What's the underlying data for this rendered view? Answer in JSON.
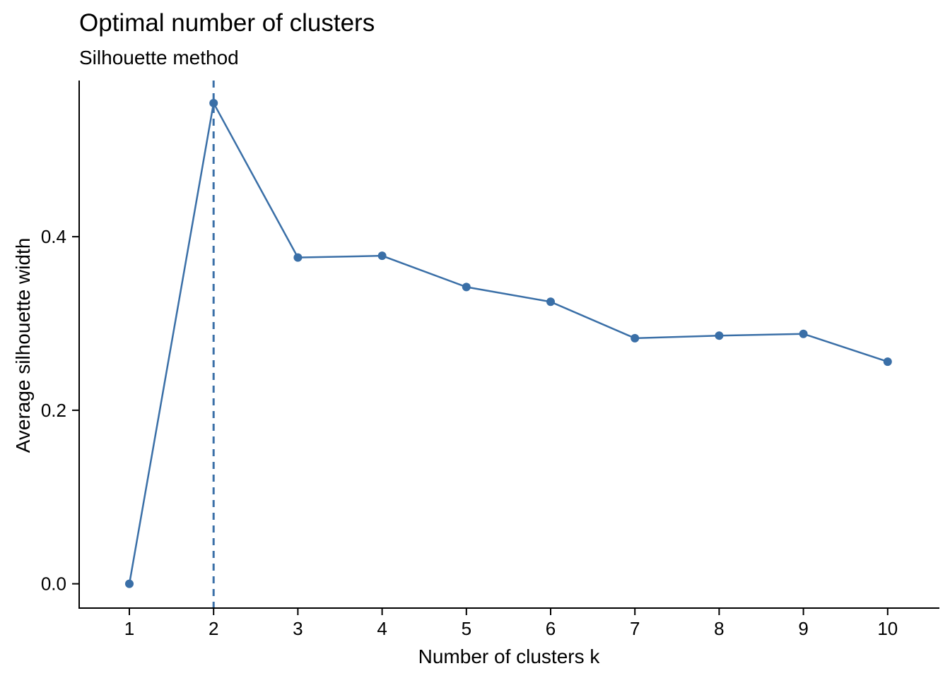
{
  "chart_data": {
    "type": "line",
    "title": "Optimal number of clusters",
    "subtitle": "Silhouette method",
    "xlabel": "Number of clusters k",
    "ylabel": "Average silhouette width",
    "categories": [
      "1",
      "2",
      "3",
      "4",
      "5",
      "6",
      "7",
      "8",
      "9",
      "10"
    ],
    "series": [
      {
        "values": [
          0.0,
          0.554,
          0.376,
          0.378,
          0.342,
          0.325,
          0.283,
          0.286,
          0.288,
          0.256
        ]
      }
    ],
    "y_ticks": [
      "0.0",
      "0.2",
      "0.4"
    ],
    "y_tick_values": [
      0.0,
      0.2,
      0.4
    ],
    "ylim": [
      -0.028,
      0.58
    ],
    "optimal_k": 2,
    "grid": false,
    "legend": "none",
    "colors": {
      "line": "#3a6fa7",
      "point": "#3a6fa7",
      "reference_line": "#3a6fa7",
      "axis": "#000000"
    }
  }
}
